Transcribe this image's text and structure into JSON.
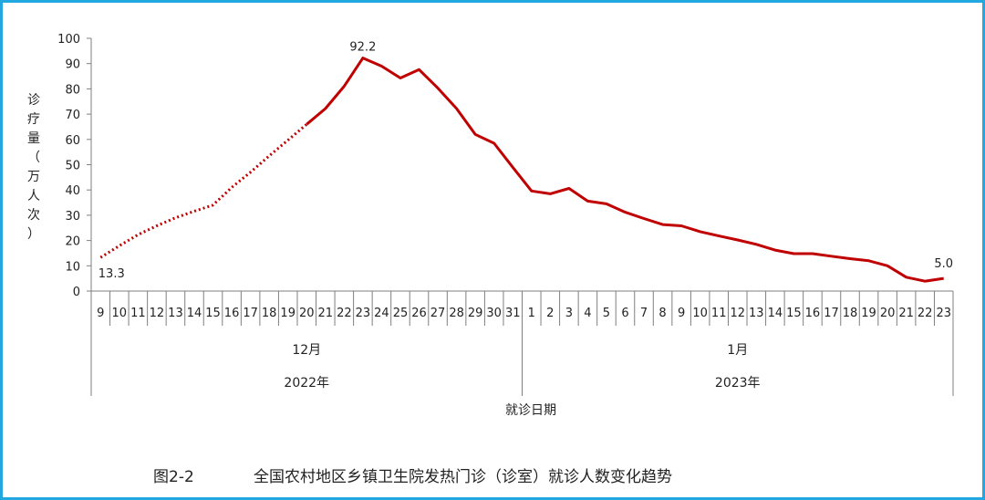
{
  "caption": {
    "number": "图2-2",
    "text": "全国农村地区乡镇卫生院发热门诊（诊室）就诊人数变化趋势"
  },
  "colors": {
    "line": "#c00000",
    "border": "#22a7e0",
    "axis": "#7f7f7f"
  },
  "chart_data": {
    "type": "line",
    "ylabel": "诊疗量（万人次）",
    "ylim": [
      0,
      100
    ],
    "yticks": [
      0,
      10,
      20,
      30,
      40,
      50,
      60,
      70,
      80,
      90,
      100
    ],
    "xlabel": "就诊日期",
    "categories": [
      "9",
      "10",
      "11",
      "12",
      "13",
      "14",
      "15",
      "16",
      "17",
      "18",
      "19",
      "20",
      "21",
      "22",
      "23",
      "24",
      "25",
      "26",
      "27",
      "28",
      "29",
      "30",
      "31",
      "1",
      "2",
      "3",
      "4",
      "5",
      "6",
      "7",
      "8",
      "9",
      "10",
      "11",
      "12",
      "13",
      "14",
      "15",
      "16",
      "17",
      "18",
      "19",
      "20",
      "21",
      "22",
      "23"
    ],
    "month_groups": [
      {
        "label": "12月",
        "count": 23
      },
      {
        "label": "1月",
        "count": 23
      }
    ],
    "year_groups": [
      {
        "label": "2022年",
        "count": 23
      },
      {
        "label": "2023年",
        "count": 23
      }
    ],
    "dotted_segment": {
      "from": 0,
      "to": 11
    },
    "values": [
      13.3,
      17.9,
      22.3,
      25.8,
      29.0,
      31.6,
      34.0,
      41.0,
      47.0,
      53.5,
      59.7,
      66.0,
      72.2,
      81.0,
      92.2,
      89.0,
      84.3,
      87.6,
      80.3,
      72.2,
      62.0,
      58.5,
      49.0,
      39.6,
      38.5,
      40.6,
      35.6,
      34.5,
      31.2,
      28.7,
      26.3,
      25.8,
      23.5,
      21.8,
      20.2,
      18.5,
      16.2,
      14.8,
      14.8,
      13.8,
      12.8,
      12.0,
      10.0,
      5.5,
      3.9,
      5.0
    ],
    "data_labels": [
      {
        "index": 0,
        "text": "13.3"
      },
      {
        "index": 14,
        "text": "92.2"
      },
      {
        "index": 45,
        "text": "5.0"
      }
    ]
  }
}
